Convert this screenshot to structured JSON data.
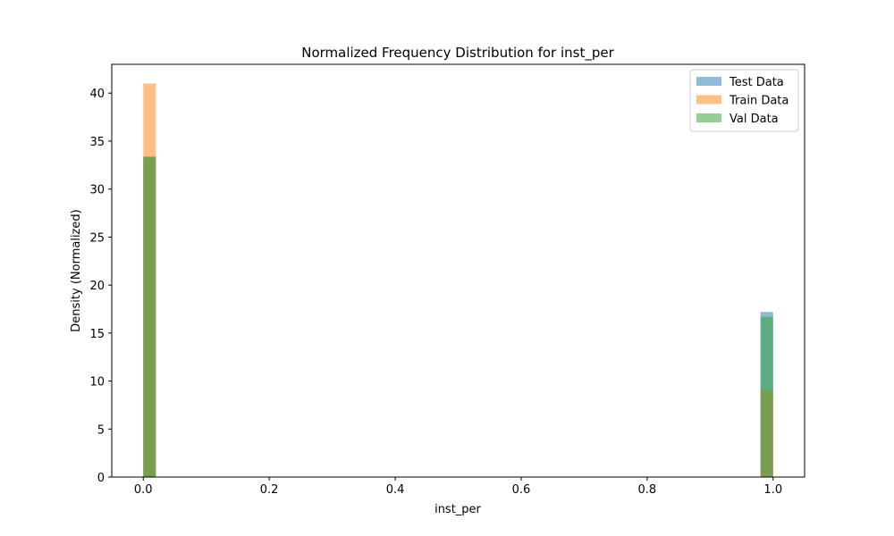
{
  "chart_data": {
    "type": "bar",
    "title": "Normalized Frequency Distribution for inst_per",
    "xlabel": "inst_per",
    "ylabel": "Density (Normalized)",
    "xlim": [
      -0.05,
      1.05
    ],
    "ylim": [
      0,
      43
    ],
    "xticks": [
      0.0,
      0.2,
      0.4,
      0.6,
      0.8,
      1.0
    ],
    "xtick_labels": [
      "0.0",
      "0.2",
      "0.4",
      "0.6",
      "0.8",
      "1.0"
    ],
    "yticks": [
      0,
      5,
      10,
      15,
      20,
      25,
      30,
      35,
      40
    ],
    "ytick_labels": [
      "0",
      "5",
      "10",
      "15",
      "20",
      "25",
      "30",
      "35",
      "40"
    ],
    "bin_width": 0.02,
    "bins": [
      0.0,
      0.98
    ],
    "legend_position": "upper right",
    "grid": false,
    "series": [
      {
        "name": "Test Data",
        "color": "#1f77b4",
        "alpha": 0.5,
        "values": [
          33.3,
          17.2
        ]
      },
      {
        "name": "Train Data",
        "color": "#ff7f0e",
        "alpha": 0.5,
        "values": [
          41.0,
          9.0
        ]
      },
      {
        "name": "Val Data",
        "color": "#2ca02c",
        "alpha": 0.5,
        "values": [
          33.4,
          16.7
        ]
      }
    ]
  }
}
